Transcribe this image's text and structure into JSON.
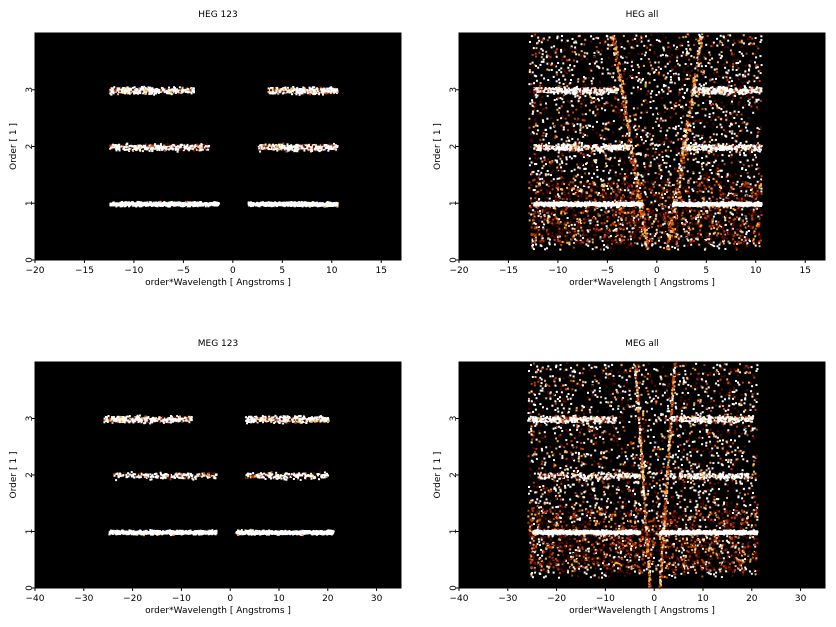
{
  "chart_data": [
    {
      "type": "heatmap",
      "title": "HEG 123",
      "xlabel": "order*Wavelength [ Angstroms ]",
      "ylabel": "Order [ 1 ]",
      "xlim": [
        -20,
        17
      ],
      "ylim": [
        0,
        4
      ],
      "xticks": [
        "−20",
        "−15",
        "−10",
        "−5",
        "0",
        "5",
        "10",
        "15"
      ],
      "xtick_values": [
        -20,
        -15,
        -10,
        -5,
        0,
        5,
        10,
        15
      ],
      "yticks": [
        "0",
        "1",
        "2",
        "3"
      ],
      "ytick_values": [
        0,
        1,
        2,
        3
      ],
      "bands": [
        {
          "order": 1,
          "x_ranges": [
            [
              -12.5,
              -1.5
            ],
            [
              1.5,
              10.5
            ]
          ],
          "intensity": "high"
        },
        {
          "order": 2,
          "x_ranges": [
            [
              -12.5,
              -2.5
            ],
            [
              2.5,
              10.5
            ]
          ],
          "intensity": "medium"
        },
        {
          "order": 3,
          "x_ranges": [
            [
              -12.5,
              -4
            ],
            [
              3.5,
              10.5
            ]
          ],
          "intensity": "medium"
        }
      ],
      "background_noise": false
    },
    {
      "type": "heatmap",
      "title": "HEG all",
      "xlabel": "order*Wavelength [ Angstroms ]",
      "ylabel": "Order [ 1 ]",
      "xlim": [
        -20,
        17
      ],
      "ylim": [
        0,
        4
      ],
      "xticks": [
        "−20",
        "−15",
        "−10",
        "−5",
        "0",
        "5",
        "10",
        "15"
      ],
      "xtick_values": [
        -20,
        -15,
        -10,
        -5,
        0,
        5,
        10,
        15
      ],
      "yticks": [
        "0",
        "1",
        "2",
        "3"
      ],
      "ytick_values": [
        0,
        1,
        2,
        3
      ],
      "bands": [
        {
          "order": 1,
          "x_ranges": [
            [
              -12.5,
              -1.5
            ],
            [
              1.5,
              10.5
            ]
          ],
          "intensity": "high"
        },
        {
          "order": 2,
          "x_ranges": [
            [
              -12.5,
              -2.5
            ],
            [
              2.5,
              10.5
            ]
          ],
          "intensity": "medium"
        },
        {
          "order": 3,
          "x_ranges": [
            [
              -12.5,
              -4
            ],
            [
              3.5,
              10.5
            ]
          ],
          "intensity": "medium"
        }
      ],
      "background_noise": true,
      "noise_x_range": [
        -13,
        10.5
      ],
      "wedge_lines": [
        [
          -1,
          0.2,
          -4.5,
          4
        ],
        [
          1,
          0.2,
          4.5,
          4
        ]
      ]
    },
    {
      "type": "heatmap",
      "title": "MEG 123",
      "xlabel": "order*Wavelength [ Angstroms ]",
      "ylabel": "Order [ 1 ]",
      "xlim": [
        -40,
        35
      ],
      "ylim": [
        0,
        4
      ],
      "xticks": [
        "−40",
        "−30",
        "−20",
        "−10",
        "0",
        "10",
        "20",
        "30"
      ],
      "xtick_values": [
        -40,
        -30,
        -20,
        -10,
        0,
        10,
        20,
        30
      ],
      "yticks": [
        "0",
        "1",
        "2",
        "3"
      ],
      "ytick_values": [
        0,
        1,
        2,
        3
      ],
      "bands": [
        {
          "order": 1,
          "x_ranges": [
            [
              -25,
              -3
            ],
            [
              1,
              21
            ]
          ],
          "intensity": "high"
        },
        {
          "order": 2,
          "x_ranges": [
            [
              -24,
              -3
            ],
            [
              3,
              20
            ]
          ],
          "intensity": "low"
        },
        {
          "order": 3,
          "x_ranges": [
            [
              -26,
              -8
            ],
            [
              3,
              20
            ]
          ],
          "intensity": "medium"
        }
      ],
      "background_noise": false
    },
    {
      "type": "heatmap",
      "title": "MEG all",
      "xlabel": "order*Wavelength [ Angstroms ]",
      "ylabel": "Order [ 1 ]",
      "xlim": [
        -40,
        35
      ],
      "ylim": [
        0,
        4
      ],
      "xticks": [
        "−40",
        "−30",
        "−20",
        "−10",
        "0",
        "10",
        "20",
        "30"
      ],
      "xtick_values": [
        -40,
        -30,
        -20,
        -10,
        0,
        10,
        20,
        30
      ],
      "yticks": [
        "0",
        "1",
        "2",
        "3"
      ],
      "ytick_values": [
        0,
        1,
        2,
        3
      ],
      "bands": [
        {
          "order": 1,
          "x_ranges": [
            [
              -25,
              -3
            ],
            [
              1,
              21
            ]
          ],
          "intensity": "high"
        },
        {
          "order": 2,
          "x_ranges": [
            [
              -24,
              -3
            ],
            [
              3,
              20
            ]
          ],
          "intensity": "low"
        },
        {
          "order": 3,
          "x_ranges": [
            [
              -26,
              -8
            ],
            [
              3,
              20
            ]
          ],
          "intensity": "medium"
        }
      ],
      "background_noise": true,
      "noise_x_range": [
        -26,
        21
      ],
      "wedge_lines": [
        [
          -1,
          0,
          -4,
          4
        ],
        [
          1,
          0,
          4,
          4
        ]
      ]
    }
  ],
  "colors": {
    "plot_background": "#000000",
    "hot_low": "#5a0800",
    "hot_mid": "#c83c00",
    "hot_high": "#ffb040",
    "hot_max": "#ffffff"
  }
}
